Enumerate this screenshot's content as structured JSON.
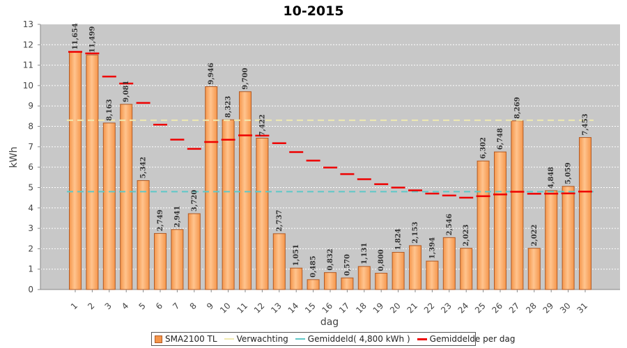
{
  "chart_data": {
    "type": "bar",
    "title": "10-2015",
    "xlabel": "dag",
    "ylabel": "kWh",
    "ylim": [
      0,
      13
    ],
    "yticks": [
      0,
      1,
      2,
      3,
      4,
      5,
      6,
      7,
      8,
      9,
      10,
      11,
      12,
      13
    ],
    "categories": [
      "1",
      "2",
      "3",
      "4",
      "5",
      "6",
      "7",
      "8",
      "9",
      "10",
      "11",
      "12",
      "13",
      "14",
      "15",
      "16",
      "17",
      "18",
      "19",
      "20",
      "21",
      "22",
      "23",
      "24",
      "25",
      "26",
      "27",
      "28",
      "29",
      "30",
      "31"
    ],
    "series": [
      {
        "name": "SMA2100 TL",
        "values": [
          11.654,
          11.499,
          8.163,
          9.081,
          5.342,
          2.749,
          2.941,
          3.72,
          9.946,
          8.323,
          9.7,
          7.422,
          2.737,
          1.051,
          0.485,
          0.832,
          0.57,
          1.131,
          0.8,
          1.824,
          2.153,
          1.394,
          2.546,
          2.023,
          6.302,
          6.748,
          8.269,
          2.022,
          4.848,
          5.059,
          7.453
        ],
        "labels": [
          "11,654",
          "11,499",
          "8,163",
          "9,081",
          "5,342",
          "2,749",
          "2,941",
          "3,720",
          "9,946",
          "8,323",
          "9,700",
          "7,422",
          "2,737",
          "1,051",
          "0,485",
          "0,832",
          "0,570",
          "1,131",
          "0,800",
          "1,824",
          "2,153",
          "1,394",
          "2,546",
          "2,023",
          "6,302",
          "6,748",
          "8,269",
          "2,022",
          "4,848",
          "5,059",
          "7,453"
        ]
      },
      {
        "name": "Verwachting",
        "value": 8.3
      },
      {
        "name": "Gemiddeld( 4,800 kWh )",
        "value": 4.8
      },
      {
        "name": "Gemiddelde per dag",
        "values": [
          11.654,
          11.577,
          10.439,
          10.099,
          9.148,
          8.082,
          7.348,
          6.895,
          7.234,
          7.343,
          7.557,
          7.546,
          7.176,
          6.739,
          6.322,
          5.979,
          5.661,
          5.41,
          5.167,
          5.0,
          4.864,
          4.706,
          4.612,
          4.504,
          4.576,
          4.66,
          4.794,
          4.695,
          4.7,
          4.712,
          4.801
        ]
      }
    ],
    "colors": {
      "bar": "#f5954a",
      "bar_light": "#ffc48e",
      "bar_edge": "#b05a25",
      "plot_bg": "#c8c8c8",
      "grid": "#ffffff",
      "verwachting": "#f0eab0",
      "gemiddeld": "#5ec8c8",
      "per_dag": "#ee0000"
    },
    "legend_position": "bottom-center"
  },
  "legend": {
    "bar": "SMA2100 TL",
    "verwachting": "Verwachting",
    "gemiddeld": "Gemiddeld( 4,800 kWh )",
    "per_dag": "Gemiddelde per dag"
  }
}
